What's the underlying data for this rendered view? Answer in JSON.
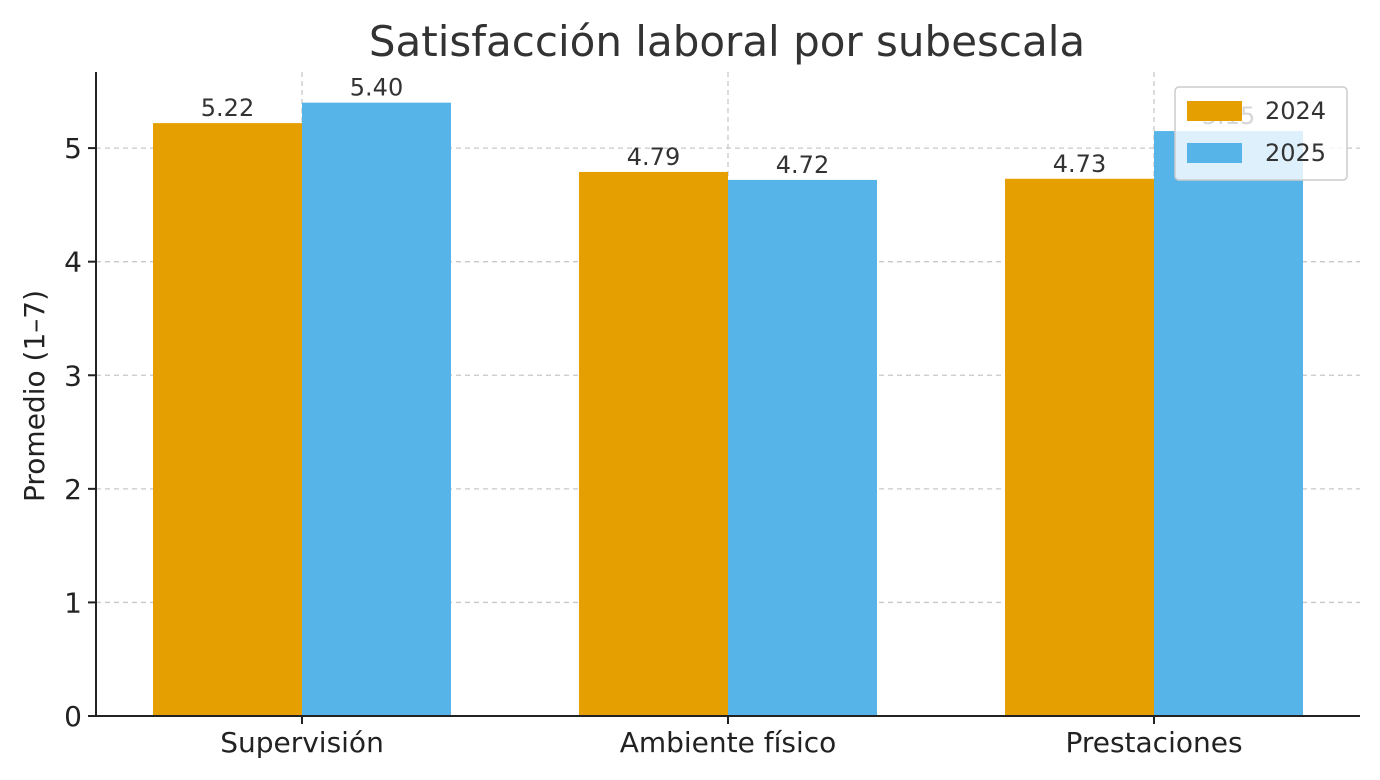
{
  "chart_data": {
    "type": "bar",
    "title": "Satisfacción laboral por subescala",
    "xlabel": "",
    "ylabel": "Promedio (1–7)",
    "categories": [
      "Supervisión",
      "Ambiente físico",
      "Prestaciones"
    ],
    "series": [
      {
        "name": "2024",
        "values": [
          5.22,
          4.79,
          4.73
        ],
        "labels": [
          "5.22",
          "4.79",
          "4.73"
        ],
        "color": "#E69F00"
      },
      {
        "name": "2025",
        "values": [
          5.4,
          4.72,
          5.15
        ],
        "labels": [
          "5.40",
          "4.72",
          "5.15"
        ],
        "color": "#56B4E9"
      }
    ],
    "ylim": [
      0,
      5.67
    ],
    "yticks": [
      0,
      1,
      2,
      3,
      4,
      5
    ],
    "grid": true,
    "legend_position": "top-right"
  }
}
